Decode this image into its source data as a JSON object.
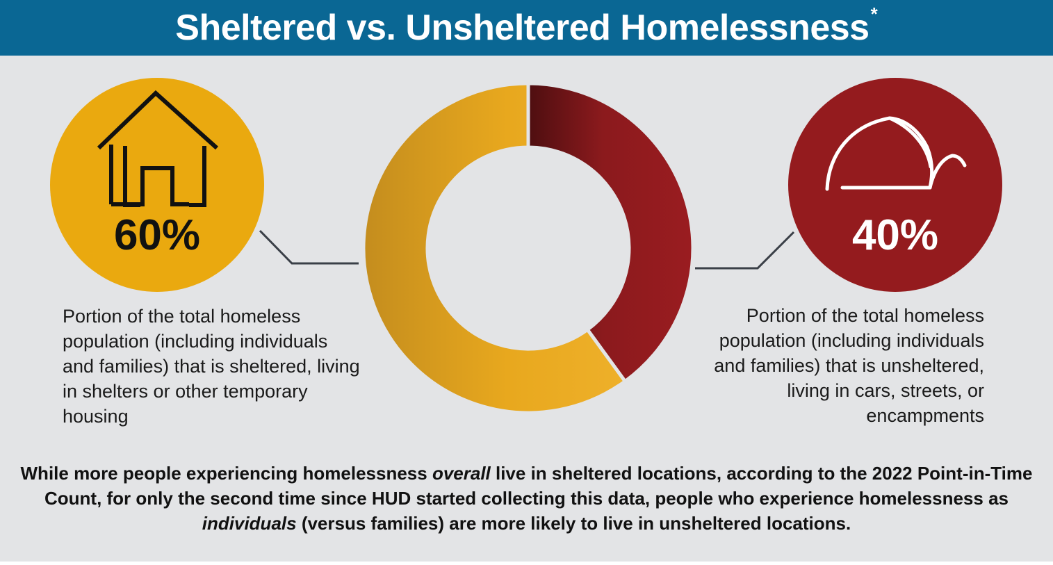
{
  "header": {
    "title": "Sheltered vs. Unsheltered Homelessness",
    "asterisk": "*"
  },
  "colors": {
    "header_bg": "#0a6794",
    "panel_bg": "#e3e4e6",
    "sheltered": "#e8a81e",
    "unsheltered": "#8b1a1d",
    "connector": "#3a3f47"
  },
  "sheltered": {
    "percent_label": "60%",
    "icon": "house-icon",
    "description": "Portion of the total homeless population (including individuals and families) that is sheltered, living in shelters or other temporary housing"
  },
  "unsheltered": {
    "percent_label": "40%",
    "icon": "tent-icon",
    "description": "Portion of the total homeless population (including individuals and families) that is unsheltered, living in cars, streets, or encampments"
  },
  "chart_data": {
    "type": "pie",
    "variant": "donut",
    "categories": [
      "Unsheltered",
      "Sheltered"
    ],
    "values": [
      40,
      60
    ],
    "colors": [
      "#8b1a1d",
      "#e8a81e"
    ]
  },
  "footnote": {
    "part1": "While more people experiencing homelessness ",
    "em1": "overall",
    "part2": " live in sheltered locations, according to the 2022 Point-in-Time Count, for only the second time since HUD started collecting this data, people who experience homelessness as ",
    "em2": "individuals",
    "part3": " (versus families) are more likely to live in unsheltered locations."
  }
}
